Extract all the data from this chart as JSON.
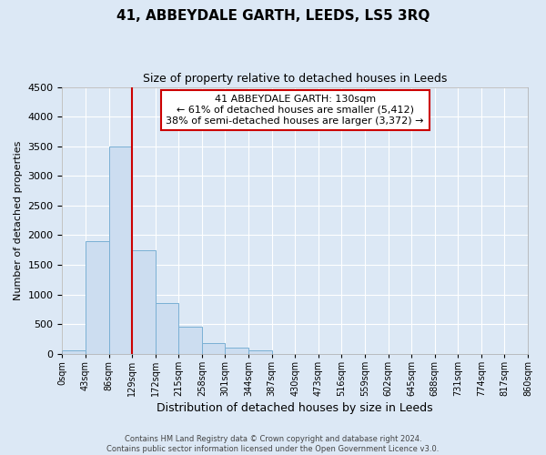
{
  "title": "41, ABBEYDALE GARTH, LEEDS, LS5 3RQ",
  "subtitle": "Size of property relative to detached houses in Leeds",
  "xlabel": "Distribution of detached houses by size in Leeds",
  "ylabel": "Number of detached properties",
  "bar_values": [
    50,
    1900,
    3500,
    1750,
    850,
    450,
    175,
    100,
    60,
    0,
    0,
    0,
    0,
    0,
    0,
    0,
    0,
    0,
    0,
    0
  ],
  "bin_labels": [
    "0sqm",
    "43sqm",
    "86sqm",
    "129sqm",
    "172sqm",
    "215sqm",
    "258sqm",
    "301sqm",
    "344sqm",
    "387sqm",
    "430sqm",
    "473sqm",
    "516sqm",
    "559sqm",
    "602sqm",
    "645sqm",
    "688sqm",
    "731sqm",
    "774sqm",
    "817sqm",
    "860sqm"
  ],
  "bin_edges": [
    0,
    43,
    86,
    129,
    172,
    215,
    258,
    301,
    344,
    387,
    430,
    473,
    516,
    559,
    602,
    645,
    688,
    731,
    774,
    817,
    860
  ],
  "bar_color": "#ccddf0",
  "bar_edge_color": "#7ab0d4",
  "vline_x": 129,
  "vline_color": "#cc0000",
  "ylim": [
    0,
    4500
  ],
  "yticks": [
    0,
    500,
    1000,
    1500,
    2000,
    2500,
    3000,
    3500,
    4000,
    4500
  ],
  "annotation_title": "41 ABBEYDALE GARTH: 130sqm",
  "annotation_line1": "← 61% of detached houses are smaller (5,412)",
  "annotation_line2": "38% of semi-detached houses are larger (3,372) →",
  "annotation_box_color": "#ffffff",
  "annotation_box_edge": "#cc0000",
  "footer_line1": "Contains HM Land Registry data © Crown copyright and database right 2024.",
  "footer_line2": "Contains public sector information licensed under the Open Government Licence v3.0.",
  "bg_color": "#dce8f5",
  "plot_bg_color": "#dce8f5",
  "grid_color": "#ffffff",
  "title_fontsize": 11,
  "subtitle_fontsize": 9,
  "ylabel_fontsize": 8,
  "xlabel_fontsize": 9,
  "tick_fontsize": 8,
  "xtick_fontsize": 7,
  "ann_fontsize": 8
}
